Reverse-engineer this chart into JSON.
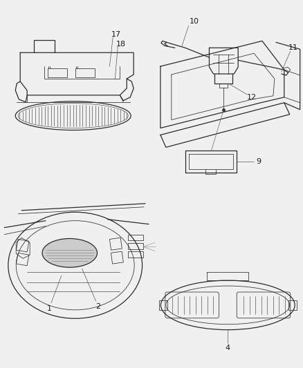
{
  "bg_color": "#f0f0f0",
  "line_color": "#2a2a2a",
  "label_color": "#1a1a1a",
  "figsize": [
    4.38,
    5.33
  ],
  "dpi": 100,
  "callout_lw": 0.5,
  "main_lw": 0.9,
  "thin_lw": 0.55
}
